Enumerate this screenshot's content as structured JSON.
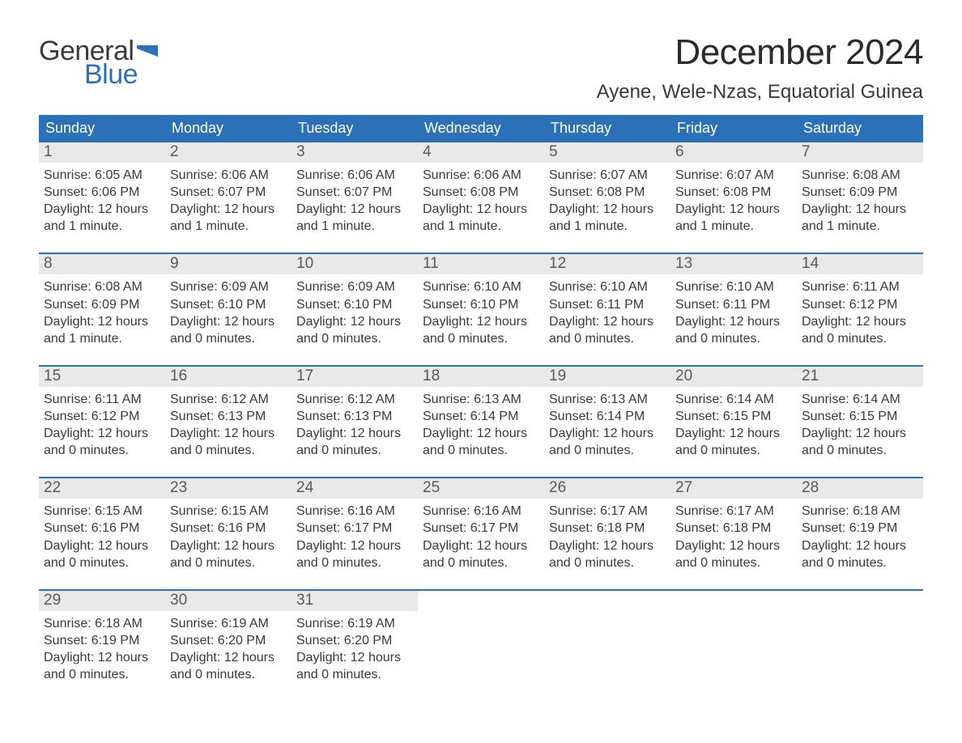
{
  "brand": {
    "general": "General",
    "blue": "Blue",
    "flag_color": "#2c71b8",
    "text_color": "#3a3a3a"
  },
  "title": "December 2024",
  "location": "Ayene, Wele-Nzas, Equatorial Guinea",
  "colors": {
    "header_bg": "#2c71b8",
    "header_text": "#ffffff",
    "daynum_bg": "#e9e9e9",
    "daynum_text": "#595959",
    "body_text": "#3a3a3a",
    "week_border": "#2c71b8",
    "page_bg": "#ffffff"
  },
  "typography": {
    "title_fontsize": 44,
    "location_fontsize": 24,
    "dayheader_fontsize": 18,
    "daynum_fontsize": 19,
    "body_fontsize": 16,
    "logo_fontsize": 34
  },
  "day_names": [
    "Sunday",
    "Monday",
    "Tuesday",
    "Wednesday",
    "Thursday",
    "Friday",
    "Saturday"
  ],
  "weeks": [
    [
      {
        "n": "1",
        "sr": "Sunrise: 6:05 AM",
        "ss": "Sunset: 6:06 PM",
        "d1": "Daylight: 12 hours",
        "d2": "and 1 minute."
      },
      {
        "n": "2",
        "sr": "Sunrise: 6:06 AM",
        "ss": "Sunset: 6:07 PM",
        "d1": "Daylight: 12 hours",
        "d2": "and 1 minute."
      },
      {
        "n": "3",
        "sr": "Sunrise: 6:06 AM",
        "ss": "Sunset: 6:07 PM",
        "d1": "Daylight: 12 hours",
        "d2": "and 1 minute."
      },
      {
        "n": "4",
        "sr": "Sunrise: 6:06 AM",
        "ss": "Sunset: 6:08 PM",
        "d1": "Daylight: 12 hours",
        "d2": "and 1 minute."
      },
      {
        "n": "5",
        "sr": "Sunrise: 6:07 AM",
        "ss": "Sunset: 6:08 PM",
        "d1": "Daylight: 12 hours",
        "d2": "and 1 minute."
      },
      {
        "n": "6",
        "sr": "Sunrise: 6:07 AM",
        "ss": "Sunset: 6:08 PM",
        "d1": "Daylight: 12 hours",
        "d2": "and 1 minute."
      },
      {
        "n": "7",
        "sr": "Sunrise: 6:08 AM",
        "ss": "Sunset: 6:09 PM",
        "d1": "Daylight: 12 hours",
        "d2": "and 1 minute."
      }
    ],
    [
      {
        "n": "8",
        "sr": "Sunrise: 6:08 AM",
        "ss": "Sunset: 6:09 PM",
        "d1": "Daylight: 12 hours",
        "d2": "and 1 minute."
      },
      {
        "n": "9",
        "sr": "Sunrise: 6:09 AM",
        "ss": "Sunset: 6:10 PM",
        "d1": "Daylight: 12 hours",
        "d2": "and 0 minutes."
      },
      {
        "n": "10",
        "sr": "Sunrise: 6:09 AM",
        "ss": "Sunset: 6:10 PM",
        "d1": "Daylight: 12 hours",
        "d2": "and 0 minutes."
      },
      {
        "n": "11",
        "sr": "Sunrise: 6:10 AM",
        "ss": "Sunset: 6:10 PM",
        "d1": "Daylight: 12 hours",
        "d2": "and 0 minutes."
      },
      {
        "n": "12",
        "sr": "Sunrise: 6:10 AM",
        "ss": "Sunset: 6:11 PM",
        "d1": "Daylight: 12 hours",
        "d2": "and 0 minutes."
      },
      {
        "n": "13",
        "sr": "Sunrise: 6:10 AM",
        "ss": "Sunset: 6:11 PM",
        "d1": "Daylight: 12 hours",
        "d2": "and 0 minutes."
      },
      {
        "n": "14",
        "sr": "Sunrise: 6:11 AM",
        "ss": "Sunset: 6:12 PM",
        "d1": "Daylight: 12 hours",
        "d2": "and 0 minutes."
      }
    ],
    [
      {
        "n": "15",
        "sr": "Sunrise: 6:11 AM",
        "ss": "Sunset: 6:12 PM",
        "d1": "Daylight: 12 hours",
        "d2": "and 0 minutes."
      },
      {
        "n": "16",
        "sr": "Sunrise: 6:12 AM",
        "ss": "Sunset: 6:13 PM",
        "d1": "Daylight: 12 hours",
        "d2": "and 0 minutes."
      },
      {
        "n": "17",
        "sr": "Sunrise: 6:12 AM",
        "ss": "Sunset: 6:13 PM",
        "d1": "Daylight: 12 hours",
        "d2": "and 0 minutes."
      },
      {
        "n": "18",
        "sr": "Sunrise: 6:13 AM",
        "ss": "Sunset: 6:14 PM",
        "d1": "Daylight: 12 hours",
        "d2": "and 0 minutes."
      },
      {
        "n": "19",
        "sr": "Sunrise: 6:13 AM",
        "ss": "Sunset: 6:14 PM",
        "d1": "Daylight: 12 hours",
        "d2": "and 0 minutes."
      },
      {
        "n": "20",
        "sr": "Sunrise: 6:14 AM",
        "ss": "Sunset: 6:15 PM",
        "d1": "Daylight: 12 hours",
        "d2": "and 0 minutes."
      },
      {
        "n": "21",
        "sr": "Sunrise: 6:14 AM",
        "ss": "Sunset: 6:15 PM",
        "d1": "Daylight: 12 hours",
        "d2": "and 0 minutes."
      }
    ],
    [
      {
        "n": "22",
        "sr": "Sunrise: 6:15 AM",
        "ss": "Sunset: 6:16 PM",
        "d1": "Daylight: 12 hours",
        "d2": "and 0 minutes."
      },
      {
        "n": "23",
        "sr": "Sunrise: 6:15 AM",
        "ss": "Sunset: 6:16 PM",
        "d1": "Daylight: 12 hours",
        "d2": "and 0 minutes."
      },
      {
        "n": "24",
        "sr": "Sunrise: 6:16 AM",
        "ss": "Sunset: 6:17 PM",
        "d1": "Daylight: 12 hours",
        "d2": "and 0 minutes."
      },
      {
        "n": "25",
        "sr": "Sunrise: 6:16 AM",
        "ss": "Sunset: 6:17 PM",
        "d1": "Daylight: 12 hours",
        "d2": "and 0 minutes."
      },
      {
        "n": "26",
        "sr": "Sunrise: 6:17 AM",
        "ss": "Sunset: 6:18 PM",
        "d1": "Daylight: 12 hours",
        "d2": "and 0 minutes."
      },
      {
        "n": "27",
        "sr": "Sunrise: 6:17 AM",
        "ss": "Sunset: 6:18 PM",
        "d1": "Daylight: 12 hours",
        "d2": "and 0 minutes."
      },
      {
        "n": "28",
        "sr": "Sunrise: 6:18 AM",
        "ss": "Sunset: 6:19 PM",
        "d1": "Daylight: 12 hours",
        "d2": "and 0 minutes."
      }
    ],
    [
      {
        "n": "29",
        "sr": "Sunrise: 6:18 AM",
        "ss": "Sunset: 6:19 PM",
        "d1": "Daylight: 12 hours",
        "d2": "and 0 minutes."
      },
      {
        "n": "30",
        "sr": "Sunrise: 6:19 AM",
        "ss": "Sunset: 6:20 PM",
        "d1": "Daylight: 12 hours",
        "d2": "and 0 minutes."
      },
      {
        "n": "31",
        "sr": "Sunrise: 6:19 AM",
        "ss": "Sunset: 6:20 PM",
        "d1": "Daylight: 12 hours",
        "d2": "and 0 minutes."
      },
      {
        "n": "",
        "sr": "",
        "ss": "",
        "d1": "",
        "d2": ""
      },
      {
        "n": "",
        "sr": "",
        "ss": "",
        "d1": "",
        "d2": ""
      },
      {
        "n": "",
        "sr": "",
        "ss": "",
        "d1": "",
        "d2": ""
      },
      {
        "n": "",
        "sr": "",
        "ss": "",
        "d1": "",
        "d2": ""
      }
    ]
  ]
}
